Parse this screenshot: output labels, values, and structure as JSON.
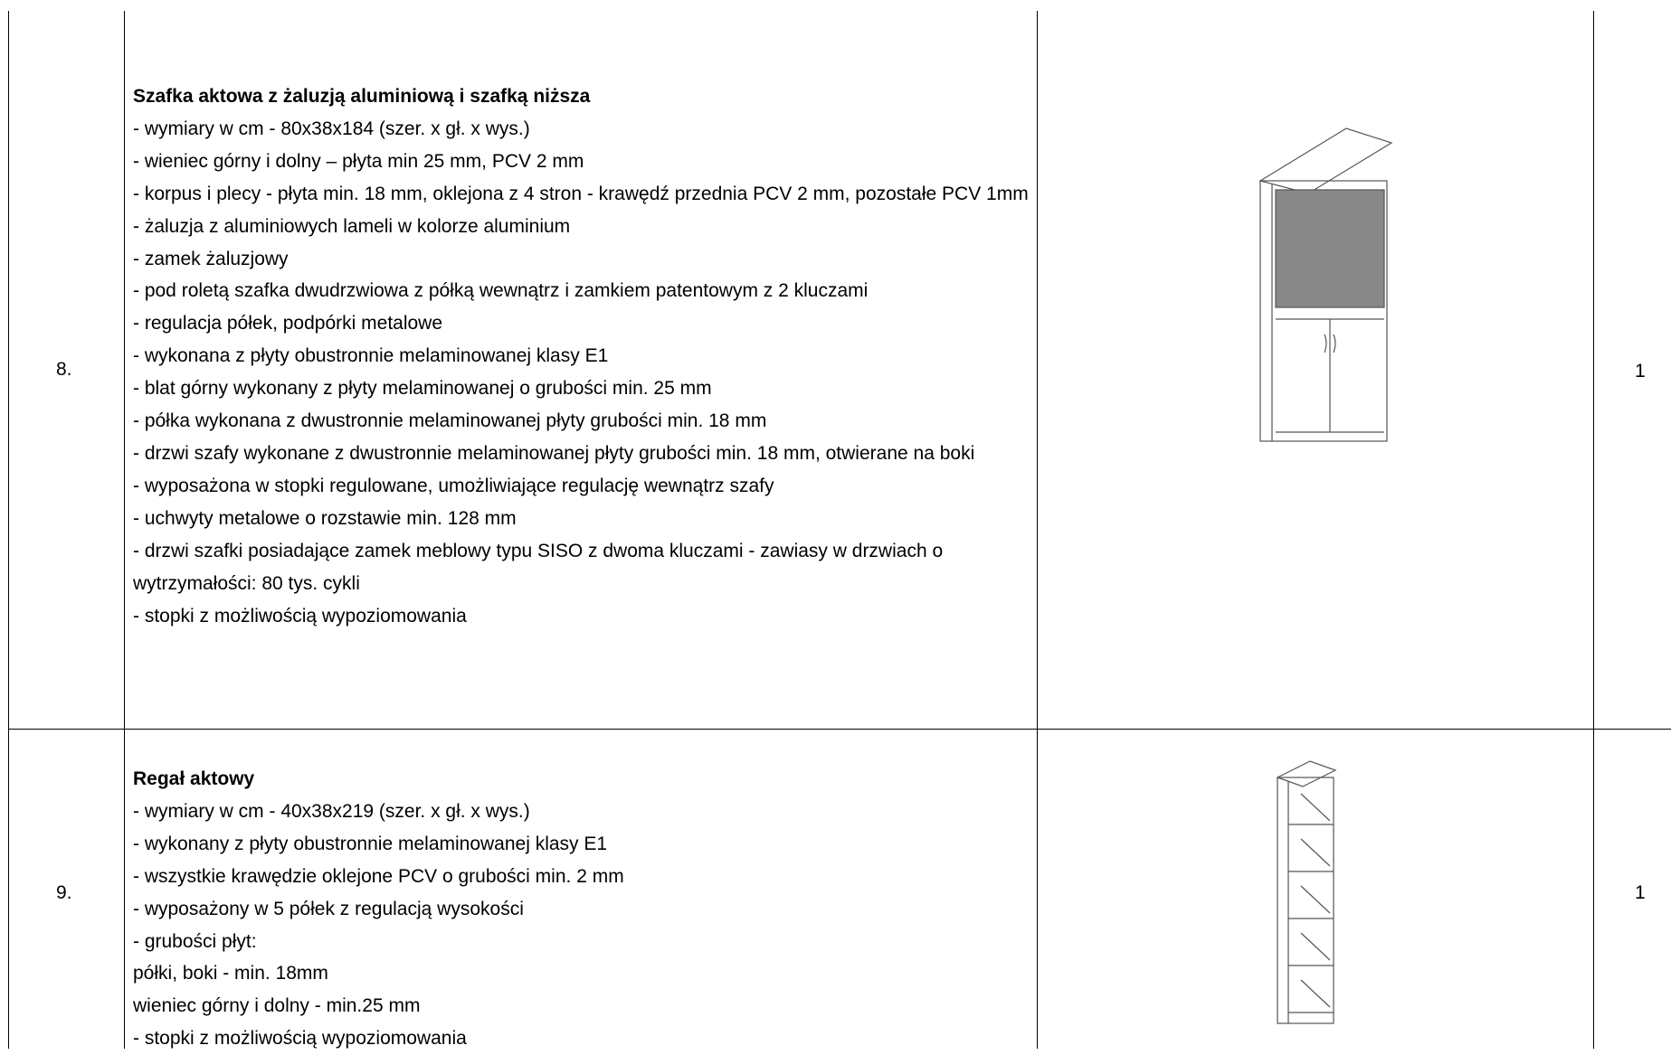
{
  "table": {
    "rows": [
      {
        "number": "8.",
        "title": "Szafka aktowa z żaluzją aluminiową i szafką niższa",
        "lines": [
          "- wymiary w cm - 80x38x184 (szer. x gł. x wys.)",
          "- wieniec górny i dolny – płyta min 25 mm, PCV 2 mm",
          "- korpus i plecy  - płyta min. 18 mm, oklejona z 4 stron - krawędź przednia PCV 2 mm, pozostałe PCV 1mm",
          "- żaluzja z aluminiowych lameli w kolorze aluminium",
          "- zamek żaluzjowy",
          "- pod roletą szafka dwudrzwiowa z półką wewnątrz i zamkiem patentowym z 2 kluczami",
          "- regulacja półek, podpórki metalowe",
          "- wykonana z płyty obustronnie melaminowanej klasy E1",
          "- blat górny wykonany z płyty melaminowanej o grubości min. 25 mm",
          "- półka wykonana z dwustronnie melaminowanej płyty grubości min. 18 mm",
          "- drzwi szafy wykonane z dwustronnie melaminowanej płyty grubości min. 18 mm, otwierane na boki",
          "- wyposażona w stopki regulowane, umożliwiające regulację wewnątrz szafy",
          "- uchwyty metalowe o rozstawie min. 128 mm",
          "- drzwi szafki posiadające zamek meblowy typu SISO z dwoma kluczami - zawiasy w drzwiach o wytrzymałości: 80 tys. cykli",
          "- stopki z możliwością wypoziomowania"
        ],
        "quantity": "1"
      },
      {
        "number": "9.",
        "title": "Regał aktowy",
        "lines": [
          "- wymiary w cm - 40x38x219 (szer. x gł. x wys.)",
          "- wykonany z płyty obustronnie melaminowanej klasy E1",
          "- wszystkie krawędzie oklejone PCV o grubości min. 2 mm",
          "- wyposażony w 5 półek z regulacją wysokości",
          "- grubości płyt:",
          "półki, boki -  min. 18mm",
          "wieniec górny i dolny - min.25 mm",
          "- stopki z możliwością wypoziomowania"
        ],
        "quantity": "1"
      }
    ]
  }
}
